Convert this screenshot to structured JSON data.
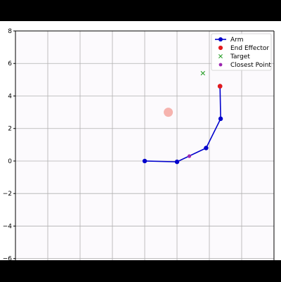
{
  "chart_data": {
    "type": "line",
    "title": "",
    "xlabel": "",
    "ylabel": "",
    "xlim": [
      -4,
      4
    ],
    "ylim": [
      -6.1,
      8
    ],
    "x_ticks": [],
    "y_ticks": [
      8,
      6,
      4,
      2,
      0,
      -2,
      -4,
      -6
    ],
    "y_tick_labels": [
      "8",
      "6",
      "4",
      "2",
      "0",
      "−2",
      "−4",
      "−6"
    ],
    "grid": true,
    "legend_position": "top-right",
    "series": [
      {
        "name": "Arm",
        "kind": "line-markers",
        "color": "#0000cc",
        "x": [
          0,
          1,
          1.9,
          2.35,
          2.33
        ],
        "y": [
          0,
          -0.05,
          0.8,
          2.6,
          4.6
        ]
      },
      {
        "name": "End Effector",
        "kind": "marker",
        "color": "#e31a1c",
        "x": [
          2.33
        ],
        "y": [
          4.6
        ]
      },
      {
        "name": "Target",
        "kind": "x-marker",
        "color": "#2ca02c",
        "x": [
          1.8
        ],
        "y": [
          5.4
        ]
      },
      {
        "name": "Closest Point",
        "kind": "marker",
        "color": "#9c27b0",
        "x": [
          1.38
        ],
        "y": [
          0.3
        ]
      }
    ],
    "obstacles": [
      {
        "x": 0.73,
        "y": 3.0,
        "color": "#f4a6a0"
      }
    ]
  }
}
